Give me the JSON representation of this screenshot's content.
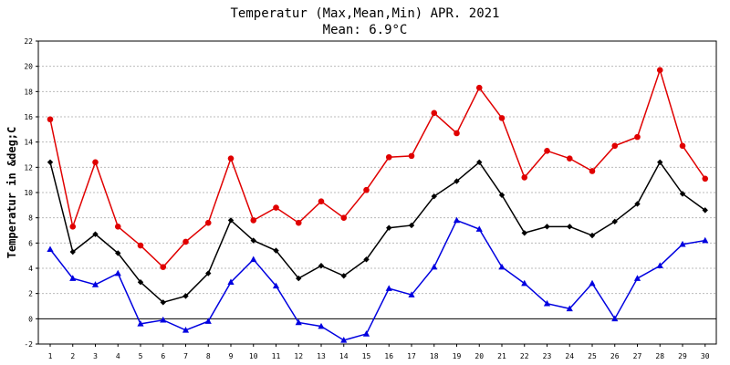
{
  "chart_data": {
    "type": "line",
    "title": "Temperatur (Max,Mean,Min) APR. 2021",
    "subtitle": "Mean: 6.9°C",
    "xlabel": "",
    "ylabel": "Temperatur in &deg;C",
    "x": [
      1,
      2,
      3,
      4,
      5,
      6,
      7,
      8,
      9,
      10,
      11,
      12,
      13,
      14,
      15,
      16,
      17,
      18,
      19,
      20,
      21,
      22,
      23,
      24,
      25,
      26,
      27,
      28,
      29,
      30
    ],
    "x_tick_labels": [
      "1",
      "2",
      "3",
      "4",
      "5",
      "6",
      "7",
      "8",
      "9",
      "10",
      "11",
      "12",
      "13",
      "14",
      "15",
      "16",
      "17",
      "18",
      "19",
      "20",
      "21",
      "22",
      "23",
      "24",
      "25",
      "26",
      "27",
      "28",
      "29",
      "30"
    ],
    "ylim": [
      -2,
      22
    ],
    "y_tick_labels": [
      "-2",
      "0",
      "2",
      "4",
      "6",
      "8",
      "10",
      "12",
      "14",
      "16",
      "18",
      "20",
      "22"
    ],
    "grid": true,
    "series": [
      {
        "name": "Max",
        "color": "#e00000",
        "marker": "circle",
        "values": [
          15.8,
          7.3,
          12.4,
          7.3,
          5.8,
          4.1,
          6.1,
          7.6,
          12.7,
          7.8,
          8.8,
          7.6,
          9.3,
          8.0,
          10.2,
          12.8,
          12.9,
          16.3,
          14.7,
          18.3,
          15.9,
          11.2,
          13.3,
          12.7,
          11.7,
          13.7,
          14.4,
          19.7,
          13.7,
          11.1
        ]
      },
      {
        "name": "Mean",
        "color": "#000000",
        "marker": "diamond",
        "values": [
          12.4,
          5.3,
          6.7,
          5.2,
          2.9,
          1.3,
          1.8,
          3.6,
          7.8,
          6.2,
          5.4,
          3.2,
          4.2,
          3.4,
          4.7,
          7.2,
          7.4,
          9.7,
          10.9,
          12.4,
          9.8,
          6.8,
          7.3,
          7.3,
          6.6,
          7.7,
          9.1,
          12.4,
          9.9,
          8.6
        ]
      },
      {
        "name": "Min",
        "color": "#0000e0",
        "marker": "triangle",
        "values": [
          5.5,
          3.2,
          2.7,
          3.6,
          -0.4,
          -0.1,
          -0.9,
          -0.2,
          2.9,
          4.7,
          2.6,
          -0.3,
          -0.6,
          -1.7,
          -1.2,
          2.4,
          1.9,
          4.1,
          7.8,
          7.1,
          4.1,
          2.8,
          1.2,
          0.8,
          2.8,
          0.0,
          3.2,
          4.2,
          5.9,
          6.2
        ]
      }
    ]
  }
}
